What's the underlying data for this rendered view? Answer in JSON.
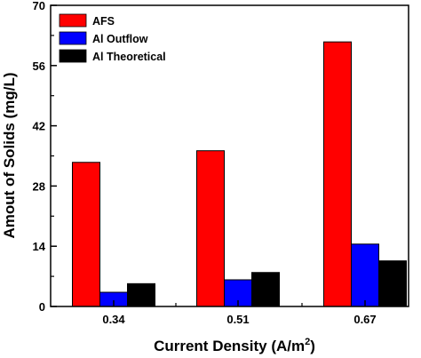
{
  "chart_data": {
    "type": "bar",
    "categories": [
      "0.34",
      "0.51",
      "0.67"
    ],
    "series": [
      {
        "name": "AFS",
        "values": [
          33.5,
          36.2,
          61.5
        ],
        "color": "#ff0000"
      },
      {
        "name": "Al Outflow",
        "values": [
          3.3,
          6.2,
          14.5
        ],
        "color": "#0000ff"
      },
      {
        "name": "Al Theoretical",
        "values": [
          5.3,
          7.9,
          10.6
        ],
        "color": "#000000"
      }
    ],
    "xlabel": "Current Density (A/m",
    "xlabel_sup": "2",
    "xlabel_end": ")",
    "ylabel": "Amout of Solids (mg/L)",
    "ylim": [
      0,
      70
    ],
    "yticks": [
      "0",
      "14",
      "28",
      "42",
      "56",
      "70"
    ],
    "legend_position": "top-left",
    "grid": false
  }
}
